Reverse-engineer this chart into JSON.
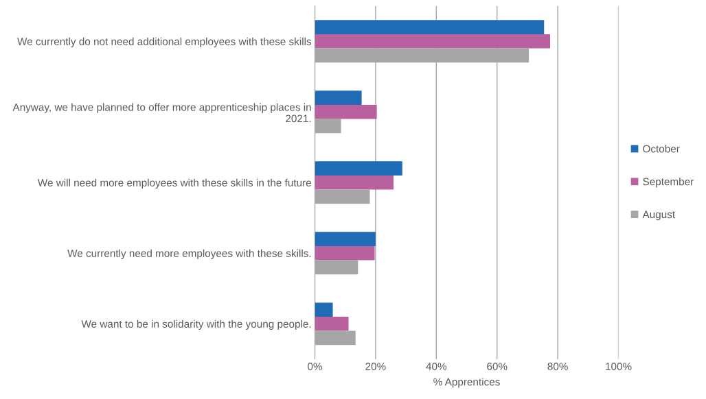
{
  "chart_data": {
    "type": "bar",
    "orientation": "horizontal",
    "categories": [
      "We currently do not need additional employees with these skills",
      "Anyway, we have planned to offer more apprenticeship places in 2021.",
      "We will need more employees with these skills in the future",
      "We currently need more employees with these skills.",
      "We want to be in solidarity with the young people."
    ],
    "series": [
      {
        "name": "October",
        "color": "#1f6bb5",
        "values": [
          75.5,
          15.4,
          28.8,
          20,
          5.9
        ]
      },
      {
        "name": "September",
        "color": "#b9609f",
        "values": [
          77.5,
          20.4,
          25.9,
          19.7,
          11.1
        ]
      },
      {
        "name": "August",
        "color": "#a6a6a6",
        "values": [
          70.5,
          8.6,
          18.1,
          14.2,
          13.4
        ]
      }
    ],
    "xlabel": "% Apprentices",
    "xlim": [
      0,
      100
    ],
    "xticks": [
      {
        "value": 0,
        "label": "0%"
      },
      {
        "value": 20,
        "label": "20%"
      },
      {
        "value": 40,
        "label": "40%"
      },
      {
        "value": 60,
        "label": "60%"
      },
      {
        "value": 80,
        "label": "80%"
      },
      {
        "value": 100,
        "label": "100%"
      }
    ],
    "grid": "x",
    "legend": "right"
  }
}
